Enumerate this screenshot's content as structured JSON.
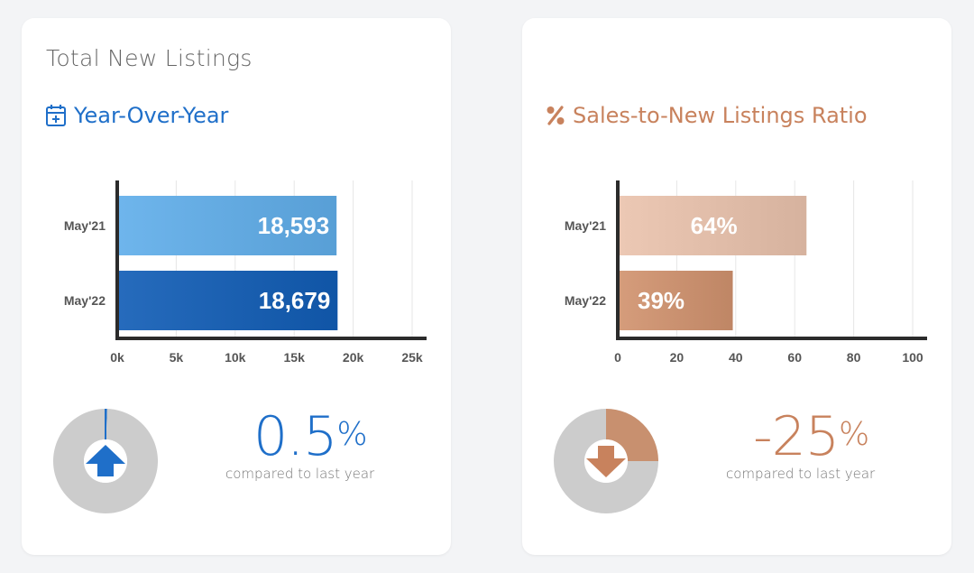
{
  "left": {
    "title": "Total New Listings",
    "subtitle": "Year-Over-Year",
    "icon": "calendar-plus-icon",
    "accent": "#1f6fc9",
    "change_value": "0.5",
    "change_unit": "%",
    "change_direction": "up",
    "compare_text": "compared to last year"
  },
  "right": {
    "subtitle": "Sales-to-New Listings Ratio",
    "icon": "percent-icon",
    "accent": "#c8825d",
    "change_value": "-25",
    "change_unit": "%",
    "change_direction": "down",
    "compare_text": "compared to last year"
  },
  "chart_data": [
    {
      "type": "bar",
      "orientation": "horizontal",
      "categories": [
        "May'21",
        "May'22"
      ],
      "values": [
        18593,
        18679
      ],
      "value_labels": [
        "18,593",
        "18,679"
      ],
      "xlim": [
        0,
        25000
      ],
      "xticks": [
        0,
        5000,
        10000,
        15000,
        20000,
        25000
      ],
      "xtick_labels": [
        "0k",
        "5k",
        "10k",
        "15k",
        "20k",
        "25k"
      ],
      "colors": [
        "#62a9e0",
        "#1a5fb0"
      ],
      "grid": true
    },
    {
      "type": "bar",
      "orientation": "horizontal",
      "categories": [
        "May'21",
        "May'22"
      ],
      "values": [
        64,
        39
      ],
      "value_labels": [
        "64%",
        "39%"
      ],
      "xlim": [
        0,
        100
      ],
      "xticks": [
        0,
        20,
        40,
        60,
        80,
        100
      ],
      "xtick_labels": [
        "0",
        "20",
        "40",
        "60",
        "80",
        "100"
      ],
      "colors": [
        "#e0bca8",
        "#c9906f"
      ],
      "grid": true
    },
    {
      "type": "pie",
      "variant": "donut",
      "values": [
        0.5,
        99.5
      ],
      "colors": [
        "#1f6fc9",
        "#cccccc"
      ]
    },
    {
      "type": "pie",
      "variant": "donut",
      "values": [
        25,
        75
      ],
      "colors": [
        "#c8906f",
        "#cccccc"
      ]
    }
  ]
}
